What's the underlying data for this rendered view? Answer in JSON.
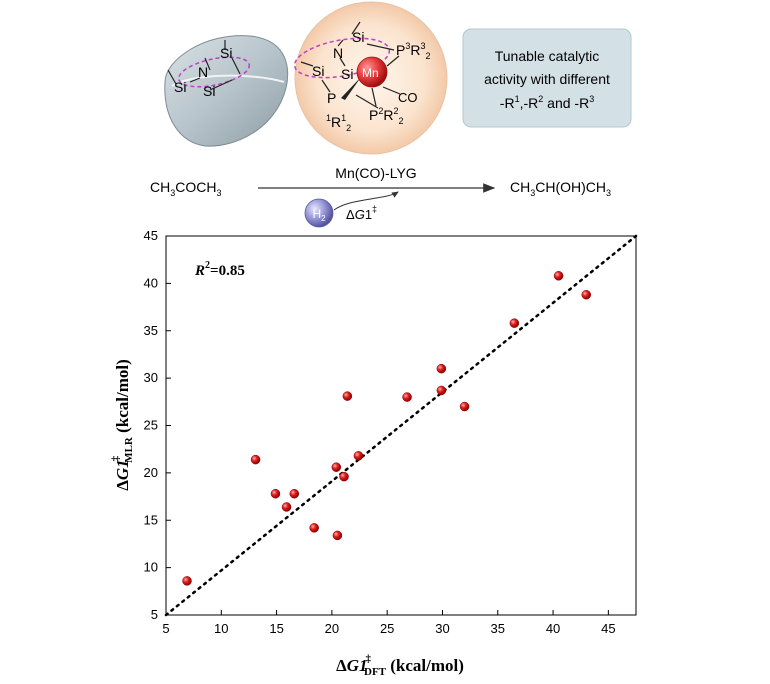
{
  "scheme": {
    "complex_labels": {
      "si1": "Si",
      "si2": "Si",
      "si3": "Si",
      "n": "N",
      "mn": "Mn",
      "p1": "P",
      "p3": "P",
      "p3_sup": "3",
      "r3": "R",
      "r3_sup": "3",
      "r3_sub": "2",
      "p2": "P",
      "p2_sup": "2",
      "r2": "R",
      "r2_sup": "2",
      "r2_sub": "2",
      "r1_sup": "1",
      "r1": "R",
      "r1_sup2": "1",
      "r1_sub": "2",
      "co": "CO"
    },
    "bowl_labels": {
      "si1": "Si",
      "si2": "Si",
      "si3": "Si",
      "n": "N"
    },
    "tunable_box": {
      "line1": "Tunable catalytic",
      "line2": "activity with different",
      "line3_prefix": "-R",
      "line3_sup1": "1",
      "line3_mid1": ",-R",
      "line3_sup2": "2",
      "line3_mid2": " and -R",
      "line3_sup3": "3"
    },
    "reaction": {
      "reactant": {
        "a": "CH",
        "a_sub": "3",
        "b": "COCH",
        "b_sub": "3"
      },
      "catalyst": "Mn(CO)-LYG",
      "product": {
        "a": "CH",
        "a_sub": "3",
        "b": "CH(OH)CH",
        "b_sub": "3"
      },
      "h2": "H",
      "h2_sub": "2",
      "dg": {
        "delta": "Δ",
        "g": "G",
        "one": "1",
        "dagger": "‡"
      }
    }
  },
  "colors": {
    "point": "#dd1010",
    "box": "#d3e0e6",
    "ball_outer": "#fbe4cf",
    "mn_ball": "#e53a3a",
    "h2_ball": "#8f8fd2",
    "dashed_ring": "#c040c0"
  },
  "chart_data": {
    "type": "scatter",
    "annotation": {
      "r": "R",
      "sup": "2",
      "value": "=0.85"
    },
    "xlabel": {
      "delta": "Δ",
      "g": "G1",
      "dagger": "‡",
      "sub": "DFT",
      "unit": " (kcal/mol)"
    },
    "ylabel": {
      "delta": "Δ",
      "g": "G1",
      "dagger": "‡",
      "sub": "MLR",
      "unit": " (kcal/mol)"
    },
    "xlim": [
      5,
      47.5
    ],
    "ylim": [
      5,
      45
    ],
    "xticks": [
      5,
      10,
      15,
      20,
      25,
      30,
      35,
      40,
      45
    ],
    "yticks": [
      5,
      10,
      15,
      20,
      25,
      30,
      35,
      40,
      45
    ],
    "grid": false,
    "fit_line": {
      "style": "dotted",
      "x": [
        5,
        47.5
      ],
      "y": [
        5,
        45
      ]
    },
    "points": [
      {
        "x": 6.9,
        "y": 8.6
      },
      {
        "x": 13.1,
        "y": 21.4
      },
      {
        "x": 14.9,
        "y": 17.8
      },
      {
        "x": 15.9,
        "y": 16.4
      },
      {
        "x": 16.6,
        "y": 17.8
      },
      {
        "x": 18.4,
        "y": 14.2
      },
      {
        "x": 20.4,
        "y": 20.6
      },
      {
        "x": 20.5,
        "y": 13.4
      },
      {
        "x": 21.1,
        "y": 19.6
      },
      {
        "x": 21.4,
        "y": 28.1
      },
      {
        "x": 22.4,
        "y": 21.8
      },
      {
        "x": 26.8,
        "y": 28.0
      },
      {
        "x": 29.9,
        "y": 31.0
      },
      {
        "x": 29.9,
        "y": 28.7
      },
      {
        "x": 32.0,
        "y": 27.0
      },
      {
        "x": 36.5,
        "y": 35.8
      },
      {
        "x": 40.5,
        "y": 40.8
      },
      {
        "x": 43.0,
        "y": 38.8
      }
    ]
  }
}
